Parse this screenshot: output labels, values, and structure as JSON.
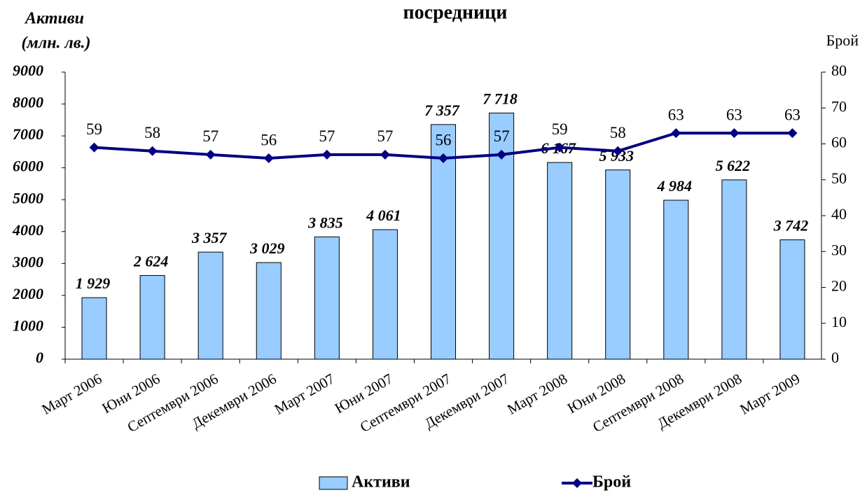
{
  "chart_data": {
    "type": "bar",
    "title": "посредници",
    "ylabel": [
      "Активи",
      "(млн. лв.)"
    ],
    "y2label": "Брой",
    "categories": [
      "Март 2006",
      "Юни 2006",
      "Септември 2006",
      "Декември 2006",
      "Март 2007",
      "Юни 2007",
      "Септември 2007",
      "Декември 2007",
      "Март 2008",
      "Юни 2008",
      "Септември 2008",
      "Декември 2008",
      "Март 2009"
    ],
    "series": [
      {
        "name": "Активи",
        "type": "bar",
        "color": "#99ccff",
        "values": [
          1929,
          2624,
          3357,
          3029,
          3835,
          4061,
          7357,
          7718,
          6167,
          5933,
          4984,
          5622,
          3742
        ],
        "value_labels": [
          "1 929",
          "2 624",
          "3 357",
          "3 029",
          "3 835",
          "4 061",
          "7 357",
          "7 718",
          "6 167",
          "5 933",
          "4 984",
          "5 622",
          "3 742"
        ]
      },
      {
        "name": "Брой",
        "type": "line",
        "color": "#000080",
        "axis": "y2",
        "values": [
          59,
          58,
          57,
          56,
          57,
          57,
          56,
          57,
          59,
          58,
          63,
          63,
          63
        ]
      }
    ],
    "ylim": [
      0,
      9000
    ],
    "yticks": [
      0,
      1000,
      2000,
      3000,
      4000,
      5000,
      6000,
      7000,
      8000,
      9000
    ],
    "y2lim": [
      0,
      80
    ],
    "y2ticks": [
      0,
      10,
      20,
      30,
      40,
      50,
      60,
      70,
      80
    ],
    "legend": "bottom"
  }
}
